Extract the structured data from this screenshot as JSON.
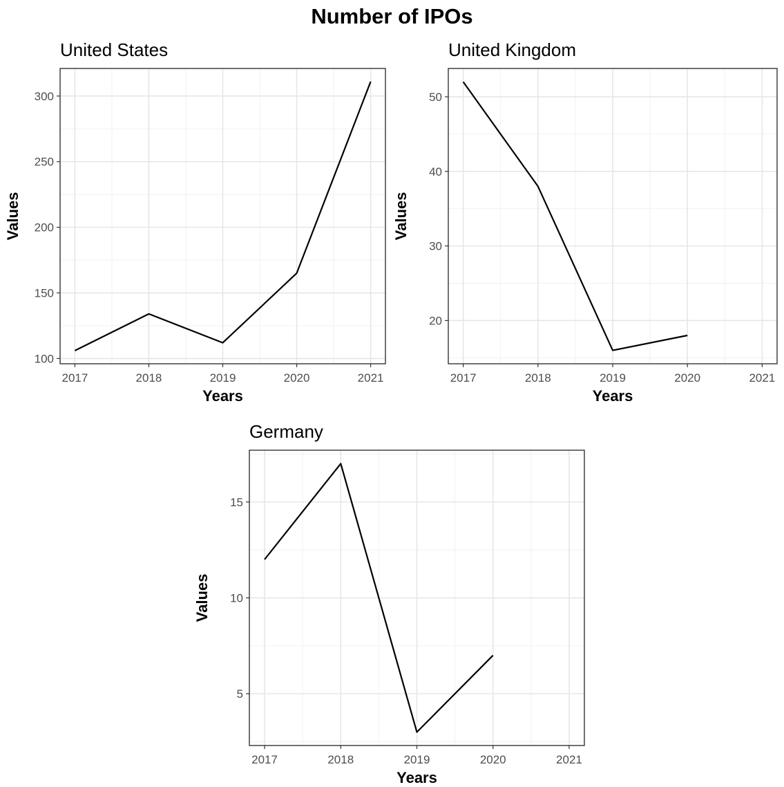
{
  "title": "Number of IPOs",
  "chart_data": [
    {
      "type": "line",
      "title": "United States",
      "xlabel": "Years",
      "ylabel": "Values",
      "x": [
        2017,
        2018,
        2019,
        2020,
        2021
      ],
      "values": [
        106,
        134,
        112,
        165,
        311
      ],
      "xlim": [
        2016.8,
        2021.2
      ],
      "ylim": [
        96,
        321
      ],
      "xticks": [
        2017,
        2018,
        2019,
        2020,
        2021
      ],
      "yticks": [
        100,
        150,
        200,
        250,
        300
      ],
      "grid": true,
      "line_color": "#000000"
    },
    {
      "type": "line",
      "title": "United Kingdom",
      "xlabel": "Years",
      "ylabel": "Values",
      "x": [
        2017,
        2018,
        2019,
        2020
      ],
      "values": [
        52,
        38,
        16,
        18
      ],
      "xlim": [
        2016.8,
        2021.2
      ],
      "ylim": [
        14.2,
        53.8
      ],
      "xticks": [
        2017,
        2018,
        2019,
        2020,
        2021
      ],
      "yticks": [
        20,
        30,
        40,
        50
      ],
      "grid": true,
      "line_color": "#000000"
    },
    {
      "type": "line",
      "title": "Germany",
      "xlabel": "Years",
      "ylabel": "Values",
      "x": [
        2017,
        2018,
        2019,
        2020
      ],
      "values": [
        12,
        17,
        3,
        7
      ],
      "xlim": [
        2016.8,
        2021.2
      ],
      "ylim": [
        2.3,
        17.7
      ],
      "xticks": [
        2017,
        2018,
        2019,
        2020,
        2021
      ],
      "yticks": [
        5,
        10,
        15
      ],
      "grid": true,
      "line_color": "#000000"
    }
  ]
}
